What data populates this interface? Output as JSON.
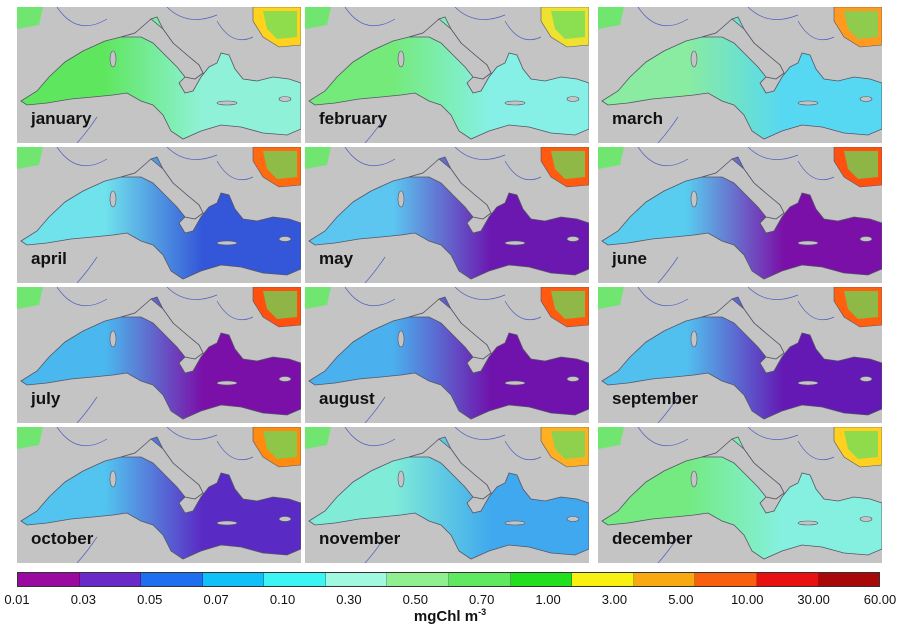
{
  "panels": [
    {
      "label": "january",
      "west": "#5fe65f",
      "east": "#8ff2d8",
      "land_sea": "#ffd21e"
    },
    {
      "label": "february",
      "west": "#74ea7a",
      "east": "#86f0e6",
      "land_sea": "#f0e030"
    },
    {
      "label": "march",
      "west": "#8aeca0",
      "east": "#56d8f2",
      "land_sea": "#ff9a20"
    },
    {
      "label": "april",
      "west": "#70e2ec",
      "east": "#3456d8",
      "land_sea": "#ff6a10"
    },
    {
      "label": "may",
      "west": "#5cc6f0",
      "east": "#6a18b0",
      "land_sea": "#ff5a10"
    },
    {
      "label": "june",
      "west": "#58cdf0",
      "east": "#7a10a8",
      "land_sea": "#ff5010"
    },
    {
      "label": "july",
      "west": "#4ab8ee",
      "east": "#7a10a8",
      "land_sea": "#ff5010"
    },
    {
      "label": "august",
      "west": "#4ab0ee",
      "east": "#7012ac",
      "land_sea": "#ff5a10"
    },
    {
      "label": "september",
      "west": "#52c0ef",
      "east": "#6418b4",
      "land_sea": "#ff6010"
    },
    {
      "label": "october",
      "west": "#52c4ef",
      "east": "#5a2ac4",
      "land_sea": "#ff8a10"
    },
    {
      "label": "november",
      "west": "#80ecd8",
      "east": "#40a8ee",
      "land_sea": "#ffb020"
    },
    {
      "label": "december",
      "west": "#74ea80",
      "east": "#86f0e0",
      "land_sea": "#ffd020"
    }
  ],
  "colorbar": {
    "colors": [
      "#9a0aa0",
      "#6a2ac8",
      "#1e6ef0",
      "#10c0f8",
      "#3cf4f4",
      "#a0f8e0",
      "#90f090",
      "#60e860",
      "#20e020",
      "#f8f010",
      "#f8a810",
      "#f86010",
      "#e81010",
      "#a80808",
      "#880000"
    ],
    "ticks": [
      "0.01",
      "0.03",
      "0.05",
      "0.07",
      "0.10",
      "0.30",
      "0.50",
      "0.70",
      "1.00",
      "3.00",
      "5.00",
      "10.00",
      "30.00",
      "60.00"
    ],
    "unit_base": "mgChl m",
    "unit_exp": "-3"
  }
}
